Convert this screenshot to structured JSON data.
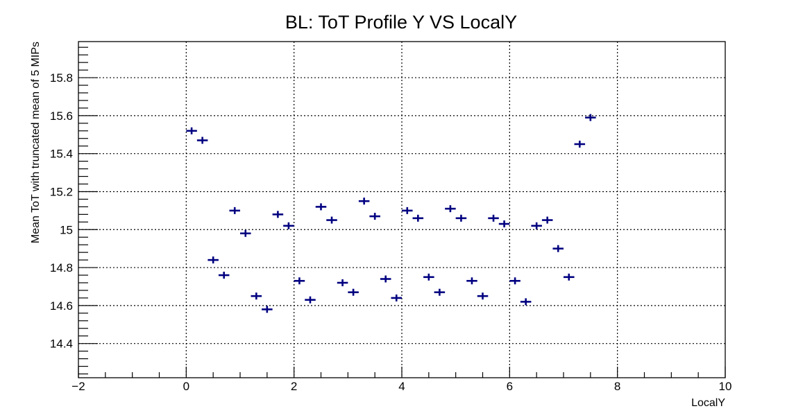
{
  "chart_data": {
    "type": "scatter",
    "title": "BL: ToT Profile Y VS LocalY",
    "xlabel": "LocalY",
    "ylabel": "Mean ToT with truncated mean of 5 MIPs",
    "xlim": [
      -2,
      10
    ],
    "ylim": [
      14.22,
      15.99
    ],
    "x_ticks": [
      "−2",
      "0",
      "2",
      "4",
      "6",
      "8",
      "10"
    ],
    "y_ticks": [
      "14.4",
      "14.6",
      "14.8",
      "15",
      "15.2",
      "15.4",
      "15.6",
      "15.8"
    ],
    "grid": true,
    "marker_color": "#000080",
    "bin_half_width": 0.1,
    "points": [
      {
        "x": 0.1,
        "y": 15.52
      },
      {
        "x": 0.3,
        "y": 15.47
      },
      {
        "x": 0.5,
        "y": 14.84
      },
      {
        "x": 0.7,
        "y": 14.76
      },
      {
        "x": 0.9,
        "y": 15.1
      },
      {
        "x": 1.1,
        "y": 14.98
      },
      {
        "x": 1.3,
        "y": 14.65
      },
      {
        "x": 1.5,
        "y": 14.58
      },
      {
        "x": 1.7,
        "y": 15.08
      },
      {
        "x": 1.9,
        "y": 15.02
      },
      {
        "x": 2.1,
        "y": 14.73
      },
      {
        "x": 2.3,
        "y": 14.63
      },
      {
        "x": 2.5,
        "y": 15.12
      },
      {
        "x": 2.7,
        "y": 15.05
      },
      {
        "x": 2.9,
        "y": 14.72
      },
      {
        "x": 3.1,
        "y": 14.67
      },
      {
        "x": 3.3,
        "y": 15.15
      },
      {
        "x": 3.5,
        "y": 15.07
      },
      {
        "x": 3.7,
        "y": 14.74
      },
      {
        "x": 3.9,
        "y": 14.64
      },
      {
        "x": 4.1,
        "y": 15.1
      },
      {
        "x": 4.3,
        "y": 15.06
      },
      {
        "x": 4.5,
        "y": 14.75
      },
      {
        "x": 4.7,
        "y": 14.67
      },
      {
        "x": 4.9,
        "y": 15.11
      },
      {
        "x": 5.1,
        "y": 15.06
      },
      {
        "x": 5.3,
        "y": 14.73
      },
      {
        "x": 5.5,
        "y": 14.65
      },
      {
        "x": 5.7,
        "y": 15.06
      },
      {
        "x": 5.9,
        "y": 15.03
      },
      {
        "x": 6.1,
        "y": 14.73
      },
      {
        "x": 6.3,
        "y": 14.62
      },
      {
        "x": 6.5,
        "y": 15.02
      },
      {
        "x": 6.7,
        "y": 15.05
      },
      {
        "x": 6.9,
        "y": 14.9
      },
      {
        "x": 7.1,
        "y": 14.75
      },
      {
        "x": 7.3,
        "y": 15.45
      },
      {
        "x": 7.5,
        "y": 15.59
      }
    ]
  }
}
